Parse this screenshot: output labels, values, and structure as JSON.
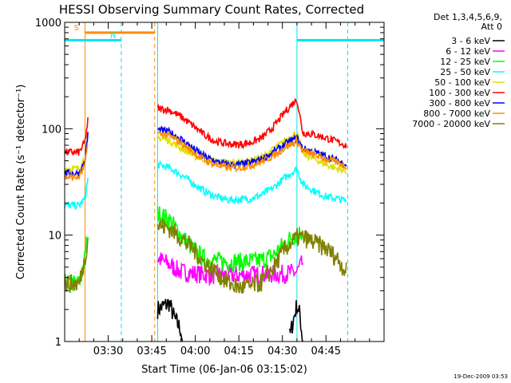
{
  "chart_data": {
    "type": "line",
    "title": "HESSI Observing Summary Count Rates, Corrected",
    "xlabel": "Start Time (06-Jan-06 03:15:02)",
    "ylabel": "Corrected Count Rate (s⁻¹ detector⁻¹)",
    "yscale": "log",
    "ylim": [
      1,
      1000
    ],
    "xlim_minutes": [
      0,
      110
    ],
    "xticks": [
      {
        "minute": 15,
        "label": "03:30"
      },
      {
        "minute": 30,
        "label": "03:45"
      },
      {
        "minute": 45,
        "label": "04:00"
      },
      {
        "minute": 60,
        "label": "04:15"
      },
      {
        "minute": 75,
        "label": "04:30"
      },
      {
        "minute": 90,
        "label": "04:45"
      }
    ],
    "yticks": [
      {
        "value": 1,
        "label": "1"
      },
      {
        "value": 10,
        "label": "10"
      },
      {
        "value": 100,
        "label": "100"
      },
      {
        "value": 1000,
        "label": "1000"
      }
    ],
    "legend_header": [
      "Det 1,3,4,5,6,9,",
      "Att 0"
    ],
    "legend_position": "right-outside",
    "series": [
      {
        "name": "3 - 6 keV",
        "color": "#000000",
        "segments": [
          {
            "x": [
              32,
              36,
              38,
              40,
              40.5
            ],
            "y": [
              2,
              2.3,
              1.6,
              1.3,
              1
            ]
          },
          {
            "x": [
              77.5,
              79,
              80,
              81,
              82
            ],
            "y": [
              1.1,
              1.7,
              2.2,
              1.8,
              1
            ]
          }
        ]
      },
      {
        "name": "6 - 12 keV",
        "color": "#ff00ff",
        "segments": [
          {
            "x": [
              32,
              35,
              40,
              50,
              60,
              70,
              75,
              80,
              82
            ],
            "y": [
              6,
              5.5,
              4.5,
              4.2,
              4.2,
              4.3,
              4.3,
              4.5,
              5.5
            ]
          }
        ]
      },
      {
        "name": "12 - 25 keV",
        "color": "#00ff00",
        "segments": [
          {
            "x": [
              0,
              5,
              7,
              7.5
            ],
            "y": [
              3.5,
              3.5,
              6,
              9
            ]
          },
          {
            "x": [
              32,
              36,
              40,
              44,
              48,
              55,
              62,
              68,
              72,
              75,
              78,
              80,
              82
            ],
            "y": [
              16,
              14,
              10,
              7.5,
              6,
              5.6,
              5.6,
              5.8,
              6.5,
              8,
              9.5,
              10,
              11
            ]
          }
        ]
      },
      {
        "name": "25 - 50 keV",
        "color": "#00ffff",
        "segments": [
          {
            "x": [
              0,
              5,
              7,
              8
            ],
            "y": [
              19,
              19,
              22,
              34
            ]
          },
          {
            "x": [
              32,
              36,
              40,
              44,
              48,
              52,
              56,
              60,
              64,
              68,
              72,
              76,
              80,
              82,
              86,
              90,
              94,
              97
            ],
            "y": [
              46,
              43,
              37,
              31,
              26,
              23,
              21.5,
              21.5,
              22,
              24,
              28,
              35,
              42,
              30,
              26,
              23,
              22,
              21
            ]
          }
        ]
      },
      {
        "name": "50 - 100 keV",
        "color": "#e0e000",
        "segments": [
          {
            "x": [
              0,
              5,
              7,
              8
            ],
            "y": [
              42,
              42,
              55,
              85
            ]
          },
          {
            "x": [
              32,
              36,
              40,
              44,
              48,
              52,
              56,
              60,
              64,
              68,
              72,
              76,
              80,
              82,
              86,
              90,
              94,
              97
            ],
            "y": [
              82,
              78,
              66,
              57,
              52,
              49,
              48,
              48,
              50,
              54,
              64,
              78,
              92,
              58,
              52,
              46,
              42,
              40
            ]
          }
        ]
      },
      {
        "name": "100 - 300 keV",
        "color": "#ff0000",
        "segments": [
          {
            "x": [
              0,
              5,
              7,
              8
            ],
            "y": [
              60,
              60,
              75,
              120
            ]
          },
          {
            "x": [
              32,
              36,
              40,
              44,
              48,
              52,
              56,
              60,
              64,
              68,
              72,
              76,
              80,
              82,
              86,
              90,
              94,
              97
            ],
            "y": [
              155,
              150,
              130,
              108,
              88,
              76,
              72,
              71,
              74,
              82,
              105,
              145,
              190,
              92,
              88,
              82,
              75,
              70
            ]
          }
        ]
      },
      {
        "name": "300 - 800 keV",
        "color": "#0000ff",
        "segments": [
          {
            "x": [
              0,
              5,
              7,
              8
            ],
            "y": [
              38,
              38,
              50,
              90
            ]
          },
          {
            "x": [
              32,
              36,
              40,
              44,
              48,
              52,
              56,
              60,
              64,
              68,
              72,
              76,
              80,
              82,
              86,
              90,
              94,
              97
            ],
            "y": [
              98,
              93,
              80,
              66,
              55,
              49,
              46,
              46,
              48,
              52,
              60,
              72,
              82,
              65,
              60,
              55,
              50,
              46
            ]
          }
        ]
      },
      {
        "name": "800 - 7000 keV",
        "color": "#ff8c00",
        "segments": [
          {
            "x": [
              0,
              5,
              7,
              8
            ],
            "y": [
              35,
              35,
              45,
              78
            ]
          },
          {
            "x": [
              32,
              36,
              40,
              44,
              48,
              52,
              56,
              60,
              64,
              68,
              72,
              76,
              80,
              82,
              86,
              90,
              94,
              97
            ],
            "y": [
              90,
              86,
              74,
              61,
              51,
              46,
              43,
              43,
              45,
              49,
              56,
              67,
              76,
              62,
              57,
              52,
              48,
              45
            ]
          }
        ]
      },
      {
        "name": "7000 - 20000 keV",
        "color": "#808000",
        "segments": [
          {
            "x": [
              0,
              5,
              7,
              8
            ],
            "y": [
              3.5,
              3.5,
              6,
              9.5
            ]
          },
          {
            "x": [
              32,
              36,
              40,
              44,
              48,
              52,
              56,
              60,
              64,
              68,
              72,
              76,
              80,
              82,
              86,
              90,
              94,
              97
            ],
            "y": [
              12.5,
              11.5,
              9.5,
              7.5,
              5.5,
              4.5,
              3.6,
              3.2,
              3.3,
              3.6,
              5,
              7.5,
              9.5,
              9.5,
              8.5,
              7.5,
              6,
              4.5
            ]
          }
        ]
      }
    ],
    "intervals": [
      {
        "label": "S",
        "color": "#ff8c00",
        "level": 800,
        "x_start": 7,
        "x_end": 31,
        "x_tick": 7
      },
      {
        "label": "N",
        "color": "#00e5ee",
        "level": 680,
        "x_start": 0,
        "x_end": 19.5,
        "x_tick": 19.5
      },
      {
        "label": "",
        "color": "#00e5ee",
        "level": 680,
        "x_start": 80,
        "x_end": 110,
        "x_tick": 80
      }
    ],
    "markers": [
      {
        "x": 7,
        "color": "#ff8c00",
        "style": "solid"
      },
      {
        "x": 19.5,
        "color": "#00e5ee",
        "style": "dashed"
      },
      {
        "x": 31,
        "color": "#ff8c00",
        "style": "dashed"
      },
      {
        "x": 32,
        "color": "#00e5ee",
        "style": "solid"
      },
      {
        "x": 80,
        "color": "#00e5ee",
        "style": "solid"
      },
      {
        "x": 97.5,
        "color": "#00e5ee",
        "style": "dashed"
      }
    ]
  },
  "footer": {
    "timestamp": "19-Dec-2009 03:53"
  }
}
